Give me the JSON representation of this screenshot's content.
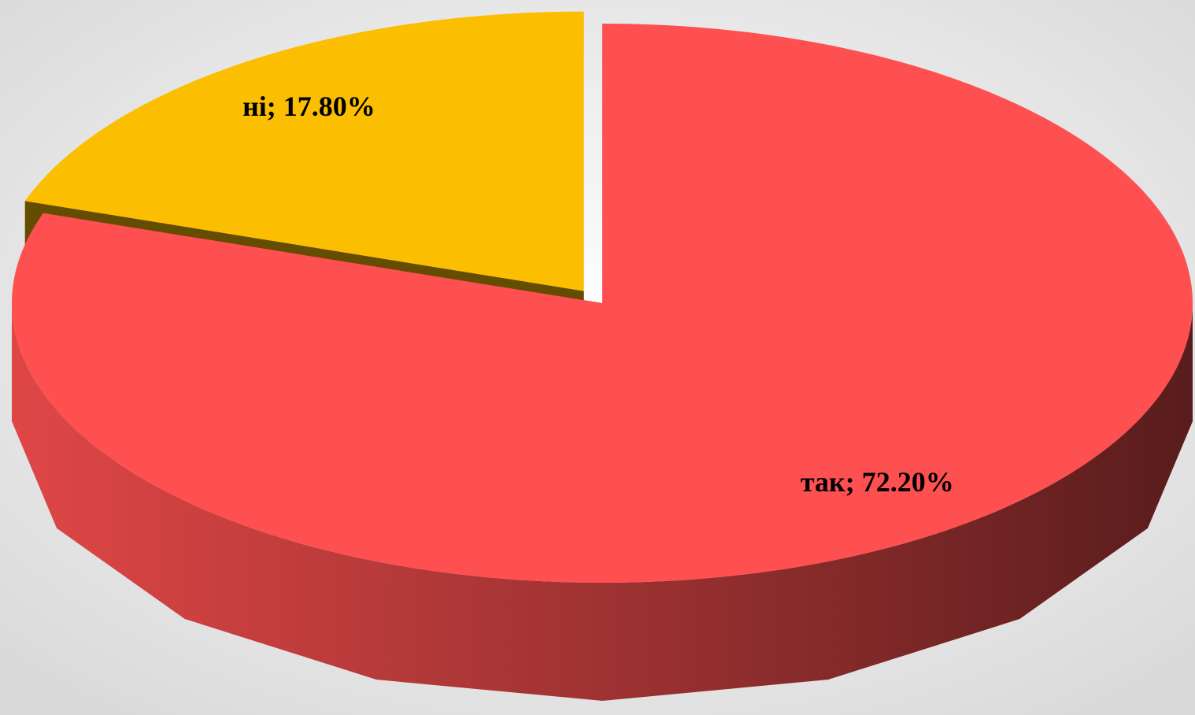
{
  "chart_data": {
    "type": "pie",
    "categories": [
      "так",
      "ні"
    ],
    "values": [
      72.2,
      17.8
    ],
    "value_labels": [
      "так; 72.20%",
      "ні; 17.80%"
    ],
    "colors": [
      "#fe5050",
      "#fbbe00"
    ],
    "exploded": [
      false,
      true
    ]
  }
}
